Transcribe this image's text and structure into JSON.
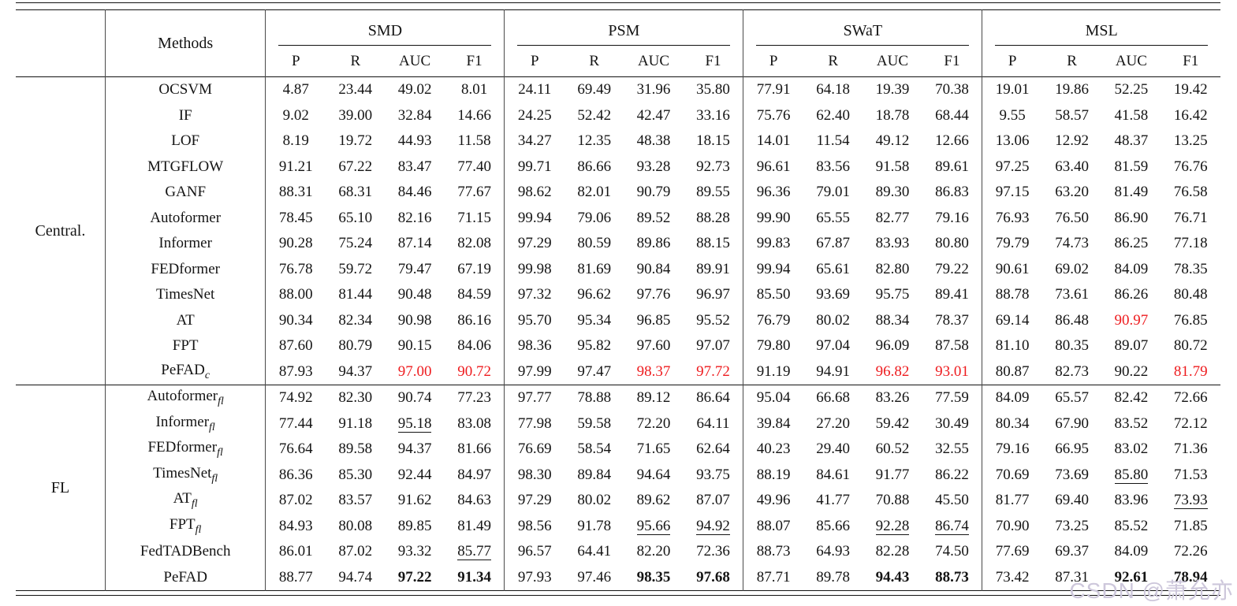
{
  "colors": {
    "accent_red": "#ee1b1e",
    "text": "#141414",
    "rule": "#121212",
    "watermark": "#cdc7db"
  },
  "watermark_text": "CSDN @萧允亦",
  "table": {
    "methods_label": "Methods",
    "datasets": [
      "SMD",
      "PSM",
      "SWaT",
      "MSL"
    ],
    "metrics": [
      "P",
      "R",
      "AUC",
      "F1"
    ],
    "sections": [
      {
        "label": "Central.",
        "rows": [
          {
            "method": "OCSVM",
            "sub": "",
            "values": [
              "4.87",
              "23.44",
              "49.02",
              "8.01",
              "24.11",
              "69.49",
              "31.96",
              "35.80",
              "77.91",
              "64.18",
              "19.39",
              "70.38",
              "19.01",
              "19.86",
              "52.25",
              "19.42"
            ],
            "fmt": {}
          },
          {
            "method": "IF",
            "sub": "",
            "values": [
              "9.02",
              "39.00",
              "32.84",
              "14.66",
              "24.25",
              "52.42",
              "42.47",
              "33.16",
              "75.76",
              "62.40",
              "18.78",
              "68.44",
              "9.55",
              "58.57",
              "41.58",
              "16.42"
            ],
            "fmt": {}
          },
          {
            "method": "LOF",
            "sub": "",
            "values": [
              "8.19",
              "19.72",
              "44.93",
              "11.58",
              "34.27",
              "12.35",
              "48.38",
              "18.15",
              "14.01",
              "11.54",
              "49.12",
              "12.66",
              "13.06",
              "12.92",
              "48.37",
              "13.25"
            ],
            "fmt": {}
          },
          {
            "method": "MTGFLOW",
            "sub": "",
            "values": [
              "91.21",
              "67.22",
              "83.47",
              "77.40",
              "99.71",
              "86.66",
              "93.28",
              "92.73",
              "96.61",
              "83.56",
              "91.58",
              "89.61",
              "97.25",
              "63.40",
              "81.59",
              "76.76"
            ],
            "fmt": {}
          },
          {
            "method": "GANF",
            "sub": "",
            "values": [
              "88.31",
              "68.31",
              "84.46",
              "77.67",
              "98.62",
              "82.01",
              "90.79",
              "89.55",
              "96.36",
              "79.01",
              "89.30",
              "86.83",
              "97.15",
              "63.20",
              "81.49",
              "76.58"
            ],
            "fmt": {}
          },
          {
            "method": "Autoformer",
            "sub": "",
            "values": [
              "78.45",
              "65.10",
              "82.16",
              "71.15",
              "99.94",
              "79.06",
              "89.52",
              "88.28",
              "99.90",
              "65.55",
              "82.77",
              "79.16",
              "76.93",
              "76.50",
              "86.90",
              "76.71"
            ],
            "fmt": {}
          },
          {
            "method": "Informer",
            "sub": "",
            "values": [
              "90.28",
              "75.24",
              "87.14",
              "82.08",
              "97.29",
              "80.59",
              "89.86",
              "88.15",
              "99.83",
              "67.87",
              "83.93",
              "80.80",
              "79.79",
              "74.73",
              "86.25",
              "77.18"
            ],
            "fmt": {}
          },
          {
            "method": "FEDformer",
            "sub": "",
            "values": [
              "76.78",
              "59.72",
              "79.47",
              "67.19",
              "99.98",
              "81.69",
              "90.84",
              "89.91",
              "99.94",
              "65.61",
              "82.80",
              "79.22",
              "90.61",
              "69.02",
              "84.09",
              "78.35"
            ],
            "fmt": {}
          },
          {
            "method": "TimesNet",
            "sub": "",
            "values": [
              "88.00",
              "81.44",
              "90.48",
              "84.59",
              "97.32",
              "96.62",
              "97.76",
              "96.97",
              "85.50",
              "93.69",
              "95.75",
              "89.41",
              "88.78",
              "73.61",
              "86.26",
              "80.48"
            ],
            "fmt": {}
          },
          {
            "method": "AT",
            "sub": "",
            "values": [
              "90.34",
              "82.34",
              "90.98",
              "86.16",
              "95.70",
              "95.34",
              "96.85",
              "95.52",
              "76.79",
              "80.02",
              "88.34",
              "78.37",
              "69.14",
              "86.48",
              "90.97",
              "76.85"
            ],
            "fmt": {
              "14": "red"
            }
          },
          {
            "method": "FPT",
            "sub": "",
            "values": [
              "87.60",
              "80.79",
              "90.15",
              "84.06",
              "98.36",
              "95.82",
              "97.60",
              "97.07",
              "79.80",
              "97.04",
              "96.09",
              "87.58",
              "81.10",
              "80.35",
              "89.07",
              "80.72"
            ],
            "fmt": {}
          },
          {
            "method": "PeFAD",
            "sub": "c",
            "values": [
              "87.93",
              "94.37",
              "97.00",
              "90.72",
              "97.99",
              "97.47",
              "98.37",
              "97.72",
              "91.19",
              "94.91",
              "96.82",
              "93.01",
              "80.87",
              "82.73",
              "90.22",
              "81.79"
            ],
            "fmt": {
              "2": "red",
              "3": "red",
              "6": "red",
              "7": "red",
              "10": "red",
              "11": "red",
              "15": "red"
            }
          }
        ]
      },
      {
        "label": "FL",
        "rows": [
          {
            "method": "Autoformer",
            "sub": "fl",
            "values": [
              "74.92",
              "82.30",
              "90.74",
              "77.23",
              "97.77",
              "78.88",
              "89.12",
              "86.64",
              "95.04",
              "66.68",
              "83.26",
              "77.59",
              "84.09",
              "65.57",
              "82.42",
              "72.66"
            ],
            "fmt": {}
          },
          {
            "method": "Informer",
            "sub": "fl",
            "values": [
              "77.44",
              "91.18",
              "95.18",
              "83.08",
              "77.98",
              "59.58",
              "72.20",
              "64.11",
              "39.84",
              "27.20",
              "59.42",
              "30.49",
              "80.34",
              "67.90",
              "83.52",
              "72.12"
            ],
            "fmt": {
              "2": "u"
            }
          },
          {
            "method": "FEDformer",
            "sub": "fl",
            "values": [
              "76.64",
              "89.58",
              "94.37",
              "81.66",
              "76.69",
              "58.54",
              "71.65",
              "62.64",
              "40.23",
              "29.40",
              "60.52",
              "32.55",
              "79.16",
              "66.95",
              "83.02",
              "71.36"
            ],
            "fmt": {}
          },
          {
            "method": "TimesNet",
            "sub": "fl",
            "values": [
              "86.36",
              "85.30",
              "92.44",
              "84.97",
              "98.30",
              "89.84",
              "94.64",
              "93.75",
              "88.19",
              "84.61",
              "91.77",
              "86.22",
              "70.69",
              "73.69",
              "85.80",
              "71.53"
            ],
            "fmt": {
              "14": "u"
            }
          },
          {
            "method": "AT",
            "sub": "fl",
            "values": [
              "87.02",
              "83.57",
              "91.62",
              "84.63",
              "97.29",
              "80.02",
              "89.62",
              "87.07",
              "49.96",
              "41.77",
              "70.88",
              "45.50",
              "81.77",
              "69.40",
              "83.96",
              "73.93"
            ],
            "fmt": {
              "15": "u"
            }
          },
          {
            "method": "FPT",
            "sub": "fl",
            "values": [
              "84.93",
              "80.08",
              "89.85",
              "81.49",
              "98.56",
              "91.78",
              "95.66",
              "94.92",
              "88.07",
              "85.66",
              "92.28",
              "86.74",
              "70.90",
              "73.25",
              "85.52",
              "71.85"
            ],
            "fmt": {
              "6": "u",
              "7": "u",
              "10": "u",
              "11": "u"
            }
          },
          {
            "method": "FedTADBench",
            "sub": "",
            "values": [
              "86.01",
              "87.02",
              "93.32",
              "85.77",
              "96.57",
              "64.41",
              "82.20",
              "72.36",
              "88.73",
              "64.93",
              "82.28",
              "74.50",
              "77.69",
              "69.37",
              "84.09",
              "72.26"
            ],
            "fmt": {
              "3": "u"
            }
          },
          {
            "method": "PeFAD",
            "sub": "",
            "values": [
              "88.77",
              "94.74",
              "97.22",
              "91.34",
              "97.93",
              "97.46",
              "98.35",
              "97.68",
              "87.71",
              "89.78",
              "94.43",
              "88.73",
              "73.42",
              "87.31",
              "92.61",
              "78.94"
            ],
            "fmt": {
              "2": "b",
              "3": "b",
              "6": "b",
              "7": "b",
              "10": "b",
              "11": "b",
              "14": "b",
              "15": "b"
            }
          }
        ]
      }
    ]
  }
}
